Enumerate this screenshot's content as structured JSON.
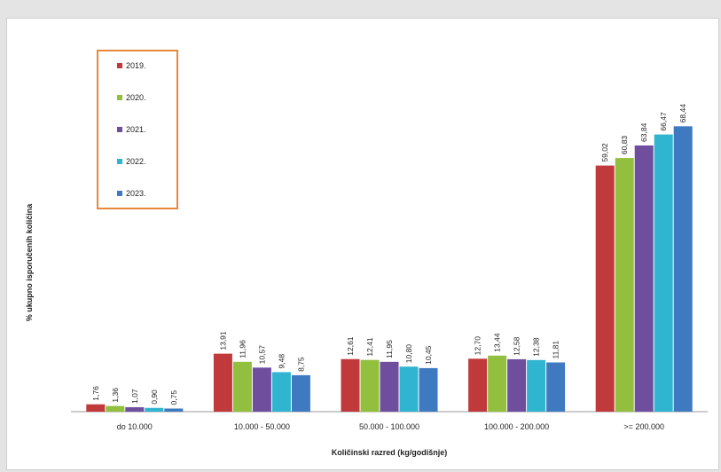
{
  "chart_data": {
    "type": "bar",
    "title": "",
    "xlabel": "Količinski razred (kg/godišnje)",
    "ylabel": "% ukupno isporučenih količina",
    "categories": [
      "do 10.000",
      "10.000 - 50.000",
      "50.000 - 100.000",
      "100.000 - 200.000",
      ">= 200.000"
    ],
    "series": [
      {
        "name": "2019.",
        "color": "#c0393b",
        "values": [
          1.76,
          13.91,
          12.61,
          12.7,
          59.02
        ],
        "labels": [
          "1,76",
          "13,91",
          "12,61",
          "12,70",
          "59,02"
        ]
      },
      {
        "name": "2020.",
        "color": "#93bf3f",
        "values": [
          1.36,
          11.96,
          12.41,
          13.44,
          60.83
        ],
        "labels": [
          "1,36",
          "11,96",
          "12,41",
          "13,44",
          "60,83"
        ]
      },
      {
        "name": "2021.",
        "color": "#6f4e9e",
        "values": [
          1.07,
          10.57,
          11.95,
          12.58,
          63.84
        ],
        "labels": [
          "1,07",
          "10,57",
          "11,95",
          "12,58",
          "63,84"
        ]
      },
      {
        "name": "2022.",
        "color": "#2fb5cf",
        "values": [
          0.9,
          9.48,
          10.8,
          12.38,
          66.47
        ],
        "labels": [
          "0,90",
          "9,48",
          "10,80",
          "12,38",
          "66,47"
        ]
      },
      {
        "name": "2023.",
        "color": "#3f7ac1",
        "values": [
          0.75,
          8.75,
          10.45,
          11.81,
          68.44
        ],
        "labels": [
          "0,75",
          "8,75",
          "10,45",
          "11,81",
          "68,44"
        ]
      }
    ],
    "ylim": [
      0,
      80
    ],
    "grid": false,
    "legend_position": "top-left",
    "legend_border_color": "#e8873a",
    "axis_color": "#999999"
  }
}
